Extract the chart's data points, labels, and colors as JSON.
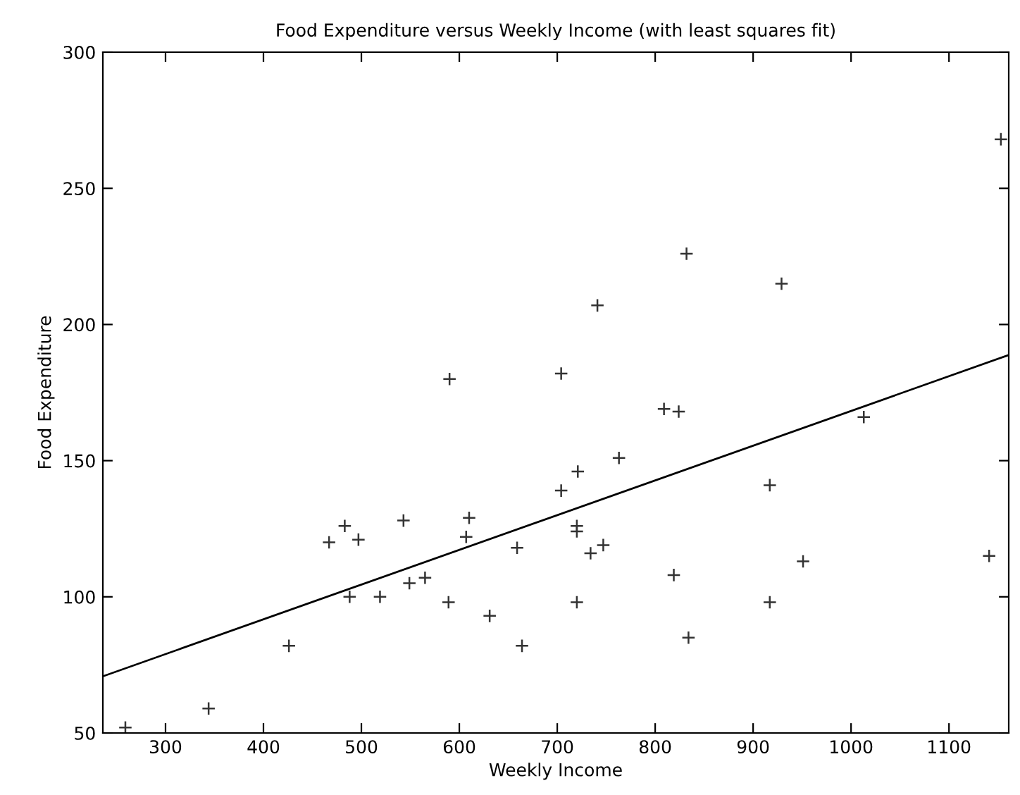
{
  "chart_data": {
    "type": "scatter",
    "title": "Food Expenditure versus Weekly Income (with least squares fit)",
    "xlabel": "Weekly Income",
    "ylabel": "Food Expenditure",
    "xlim": [
      236,
      1161
    ],
    "ylim": [
      50,
      300
    ],
    "xticks": [
      300,
      400,
      500,
      600,
      700,
      800,
      900,
      1000,
      1100
    ],
    "yticks": [
      50,
      100,
      150,
      200,
      250,
      300
    ],
    "grid": false,
    "legend": false,
    "series": [
      {
        "marker": "cross",
        "color": "#333333",
        "x": [
          259,
          344,
          426,
          467,
          483,
          497,
          488,
          519,
          543,
          549,
          565,
          589,
          607,
          610,
          631,
          659,
          664,
          590,
          704,
          741,
          832,
          929,
          1153,
          809,
          824,
          1013,
          763,
          721,
          704,
          917,
          720,
          720,
          747,
          734,
          819,
          720,
          917,
          951,
          834,
          1141
        ],
        "values": [
          52,
          59,
          82,
          120,
          126,
          121,
          100,
          100,
          128,
          105,
          107,
          98,
          122,
          129,
          93,
          118,
          82,
          180,
          182,
          207,
          226,
          215,
          268,
          169,
          168,
          166,
          151,
          146,
          139,
          141,
          126,
          124,
          119,
          116,
          108,
          98,
          98,
          113,
          85,
          115
        ]
      },
      {
        "type": "line",
        "marker": "none",
        "line_style": "solid",
        "color": "#000000",
        "x": [
          236,
          1161
        ],
        "values": [
          70.8,
          188.8
        ]
      }
    ]
  }
}
